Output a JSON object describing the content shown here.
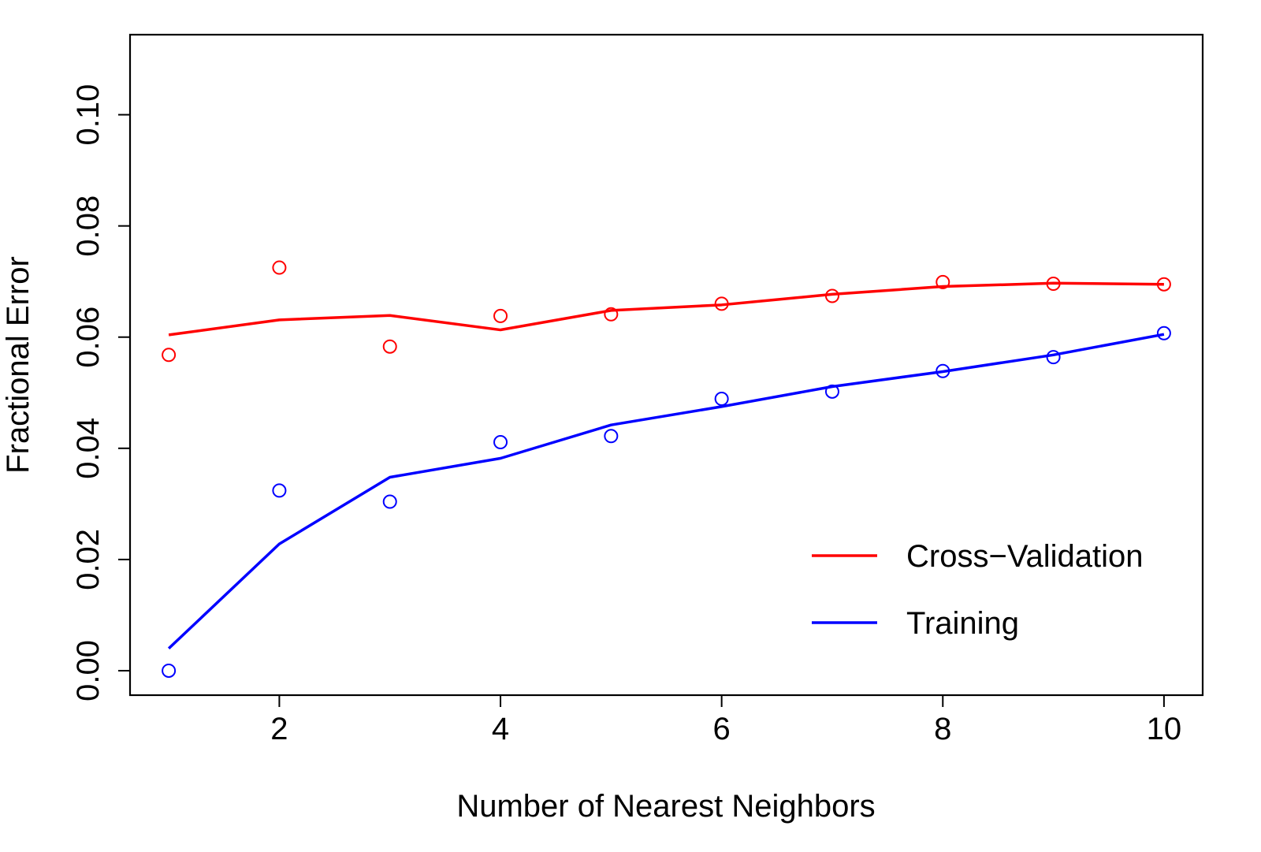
{
  "chart_data": {
    "type": "line",
    "xlabel": "Number of Nearest Neighbors",
    "ylabel": "Fractional Error",
    "xlim": [
      0.65,
      10.35
    ],
    "ylim": [
      -0.0044,
      0.1144
    ],
    "xticks": [
      2,
      4,
      6,
      8,
      10
    ],
    "xtick_labels": [
      "2",
      "4",
      "6",
      "8",
      "10"
    ],
    "yticks": [
      0.0,
      0.02,
      0.04,
      0.06,
      0.08,
      0.1
    ],
    "ytick_labels": [
      "0.00",
      "0.02",
      "0.04",
      "0.06",
      "0.08",
      "0.10"
    ],
    "grid": false,
    "legend_position": "bottom-right",
    "x": [
      1,
      2,
      3,
      4,
      5,
      6,
      7,
      8,
      9,
      10
    ],
    "series": [
      {
        "name": "Cross−Validation",
        "color": "#ff0000",
        "line": [
          0.0604,
          0.0631,
          0.0639,
          0.0613,
          0.0648,
          0.0658,
          0.0677,
          0.0691,
          0.0697,
          0.0695
        ],
        "points": [
          0.0568,
          0.0725,
          0.0583,
          0.0638,
          0.0641,
          0.066,
          0.0674,
          0.0699,
          0.0696,
          0.0695
        ]
      },
      {
        "name": "Training",
        "color": "#0000ff",
        "line": [
          0.004,
          0.0228,
          0.0348,
          0.0382,
          0.0442,
          0.0475,
          0.0511,
          0.0538,
          0.0568,
          0.0605
        ],
        "points": [
          0.0,
          0.0324,
          0.0304,
          0.0411,
          0.0422,
          0.0489,
          0.0502,
          0.0539,
          0.0564,
          0.0607
        ]
      }
    ]
  }
}
